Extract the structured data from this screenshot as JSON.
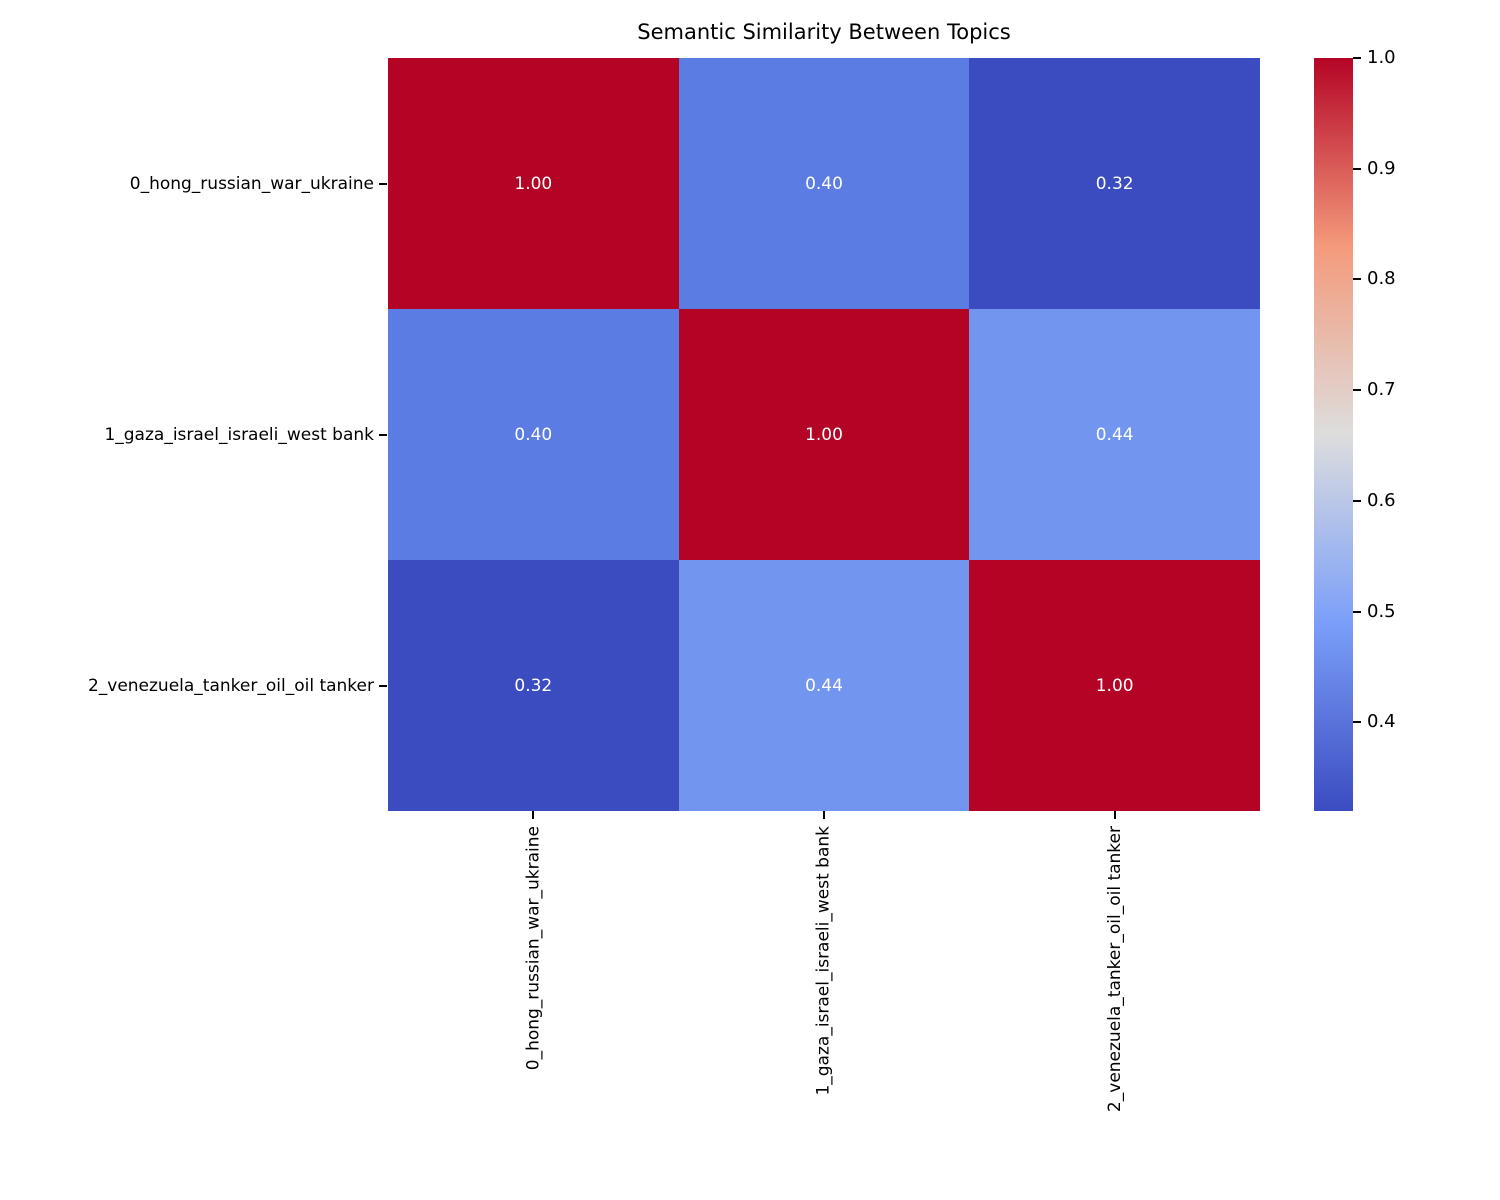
{
  "title": "Semantic Similarity Between Topics",
  "chart_data": {
    "type": "heatmap",
    "title": "Semantic Similarity Between Topics",
    "categories": [
      "0_hong_russian_war_ukraine",
      "1_gaza_israel_israeli_west bank",
      "2_venezuela_tanker_oil_oil tanker"
    ],
    "matrix": [
      [
        1.0,
        0.4,
        0.32
      ],
      [
        0.4,
        1.0,
        0.44
      ],
      [
        0.32,
        0.44,
        1.0
      ]
    ],
    "cell_labels": [
      [
        "1.00",
        "0.40",
        "0.32"
      ],
      [
        "0.40",
        "1.00",
        "0.44"
      ],
      [
        "0.32",
        "0.44",
        "1.00"
      ]
    ],
    "cell_colors": [
      [
        "#b40426",
        "#5b7ce3",
        "#3b4cc0"
      ],
      [
        "#5b7ce3",
        "#b40426",
        "#7295f0"
      ],
      [
        "#3b4cc0",
        "#7295f0",
        "#b40426"
      ]
    ],
    "colormap": "coolwarm",
    "vmin": 0.32,
    "vmax": 1.0,
    "annotation_color": "#ffffff",
    "grid": false,
    "colorbar": {
      "position": "right",
      "ticks": [
        1.0,
        0.9,
        0.8,
        0.7,
        0.6,
        0.5,
        0.4
      ],
      "gradient_top_to_bottom": [
        "#b40426",
        "#f49a7b",
        "#dddddd",
        "#7b9ff9",
        "#3b4cc0"
      ]
    }
  }
}
